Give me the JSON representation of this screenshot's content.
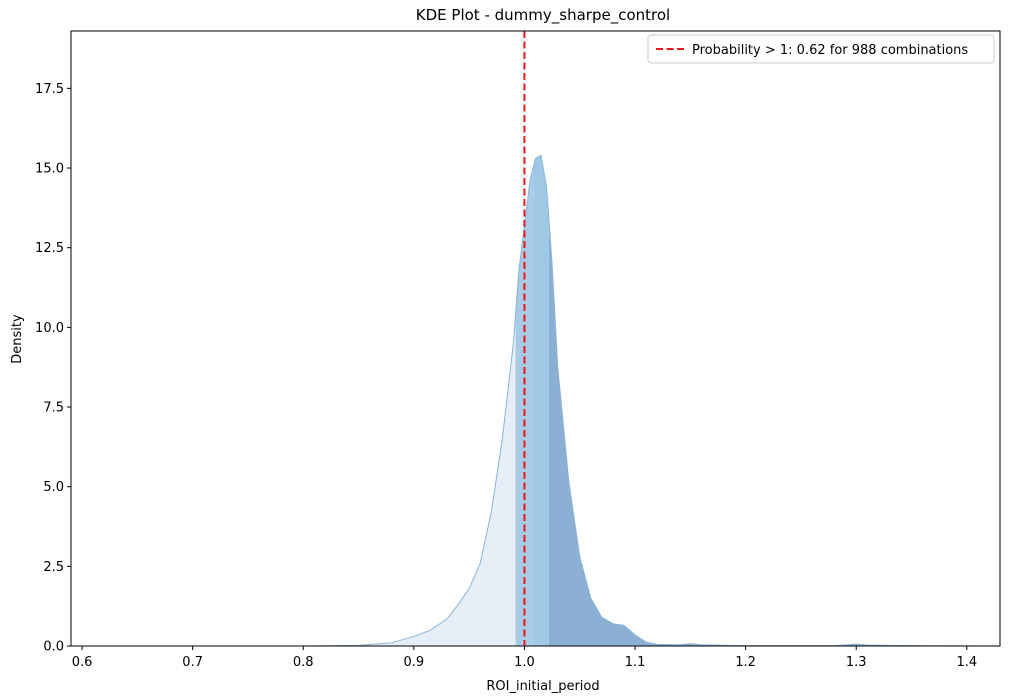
{
  "chart_data": {
    "type": "area",
    "title": "KDE Plot - dummy_sharpe_control",
    "xlabel": "ROI_initial_period",
    "ylabel": "Density",
    "xlim": [
      0.59,
      1.43
    ],
    "ylim": [
      0,
      19.3
    ],
    "xticks": [
      0.6,
      0.7,
      0.8,
      0.9,
      1.0,
      1.1,
      1.2,
      1.3,
      1.4
    ],
    "xtick_labels": [
      "0.6",
      "0.7",
      "0.8",
      "0.9",
      "1.0",
      "1.1",
      "1.2",
      "1.3",
      "1.4"
    ],
    "yticks": [
      0,
      2.5,
      5,
      7.5,
      10,
      12.5,
      15,
      17.5
    ],
    "ytick_labels": [
      "0.0",
      "2.5",
      "5.0",
      "7.5",
      "10.0",
      "12.5",
      "15.0",
      "17.5"
    ],
    "grid": false,
    "legend_position": "top-right",
    "reference_line": {
      "x": 1.0,
      "style": "dashed",
      "color": "#e41a1c",
      "label": "Probability > 1: 0.62 for 988 combinations"
    },
    "kde_curve": [
      [
        0.59,
        0
      ],
      [
        0.8,
        0
      ],
      [
        0.85,
        0.02
      ],
      [
        0.88,
        0.1
      ],
      [
        0.9,
        0.3
      ],
      [
        0.915,
        0.5
      ],
      [
        0.93,
        0.85
      ],
      [
        0.94,
        1.3
      ],
      [
        0.95,
        1.8
      ],
      [
        0.96,
        2.6
      ],
      [
        0.97,
        4.2
      ],
      [
        0.98,
        6.5
      ],
      [
        0.99,
        9.5
      ],
      [
        0.995,
        11.8
      ],
      [
        1.0,
        13.2
      ],
      [
        1.005,
        14.6
      ],
      [
        1.01,
        15.3
      ],
      [
        1.015,
        15.4
      ],
      [
        1.02,
        14.4
      ],
      [
        1.025,
        12.0
      ],
      [
        1.03,
        8.8
      ],
      [
        1.04,
        5.2
      ],
      [
        1.05,
        2.8
      ],
      [
        1.06,
        1.5
      ],
      [
        1.07,
        0.9
      ],
      [
        1.08,
        0.7
      ],
      [
        1.09,
        0.65
      ],
      [
        1.1,
        0.35
      ],
      [
        1.11,
        0.12
      ],
      [
        1.12,
        0.05
      ],
      [
        1.14,
        0.04
      ],
      [
        1.15,
        0.07
      ],
      [
        1.16,
        0.04
      ],
      [
        1.2,
        0.01
      ],
      [
        1.28,
        0.01
      ],
      [
        1.3,
        0.06
      ],
      [
        1.31,
        0.03
      ],
      [
        1.35,
        0.01
      ],
      [
        1.43,
        0
      ]
    ],
    "regions": [
      {
        "from": 0.59,
        "to": 0.992,
        "color": "#e6eef8"
      },
      {
        "from": 0.992,
        "to": 1.008,
        "color": "#a8cbe6"
      },
      {
        "from": 1.008,
        "to": 1.022,
        "color": "#9ec8e4"
      },
      {
        "from": 1.022,
        "to": 1.43,
        "color": "#8cb0d3"
      }
    ]
  }
}
